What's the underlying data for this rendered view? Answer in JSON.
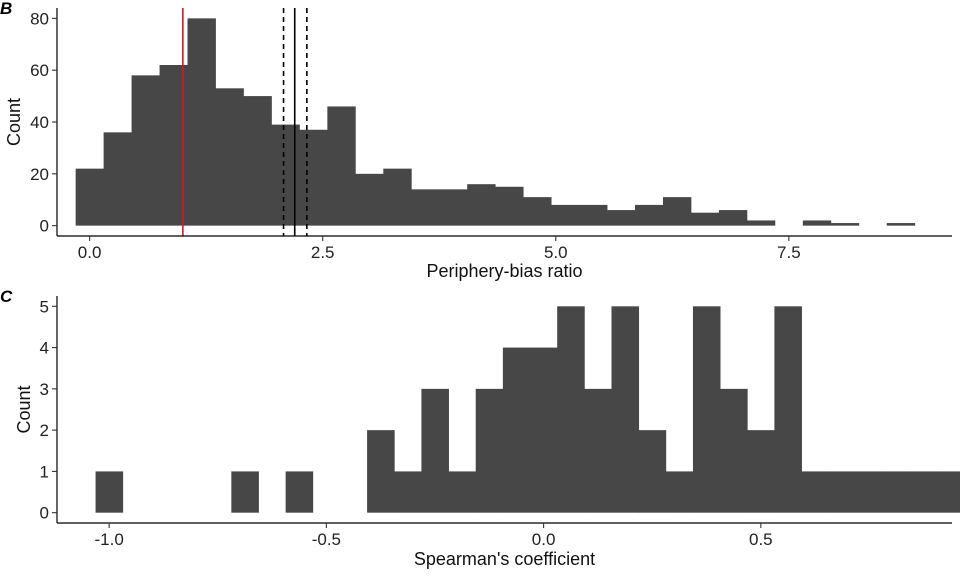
{
  "chart_data": [
    {
      "type": "bar",
      "panel_label": "B",
      "xlabel": "Periphery-bias ratio",
      "ylabel": "Count",
      "xlim": [
        -0.35,
        9.25
      ],
      "ylim": [
        -4,
        84
      ],
      "xticks": [
        0.0,
        2.5,
        5.0,
        7.5
      ],
      "xtick_labels": [
        "0.0",
        "2.5",
        "5.0",
        "7.5"
      ],
      "yticks": [
        0,
        20,
        40,
        60,
        80
      ],
      "ytick_labels": [
        "0",
        "20",
        "40",
        "60",
        "80"
      ],
      "bin_width": 0.3,
      "bin_start": -0.15,
      "values": [
        22,
        36,
        58,
        62,
        80,
        53,
        50,
        39,
        37,
        46,
        20,
        22,
        14,
        14,
        16,
        15,
        11,
        8,
        8,
        6,
        8,
        11,
        5,
        6,
        2,
        0,
        2,
        1,
        0,
        1
      ],
      "bar_color": "#474747",
      "reference_lines": [
        {
          "x": 1.0,
          "color": "#d7191c",
          "style": "solid"
        },
        {
          "x": 2.2,
          "color": "#000000",
          "style": "solid"
        },
        {
          "x": 2.08,
          "color": "#000000",
          "style": "dashed"
        },
        {
          "x": 2.33,
          "color": "#000000",
          "style": "dashed"
        }
      ],
      "grid": false
    },
    {
      "type": "bar",
      "panel_label": "C",
      "xlabel": "Spearman's coefficient",
      "ylabel": "Count",
      "xlim": [
        -1.12,
        0.94
      ],
      "ylim": [
        -0.25,
        5.25
      ],
      "xticks": [
        -1.0,
        -0.5,
        0.0,
        0.5
      ],
      "xtick_labels": [
        "-1.0",
        "-0.5",
        "0.0",
        "0.5"
      ],
      "yticks": [
        0,
        1,
        2,
        3,
        4,
        5
      ],
      "ytick_labels": [
        "0",
        "1",
        "2",
        "3",
        "4",
        "5"
      ],
      "bin_width": 0.0625,
      "bin_start": -1.03125,
      "values": [
        1,
        0,
        0,
        1,
        1,
        0,
        2,
        1,
        3,
        1,
        3,
        4,
        4,
        5,
        3,
        5,
        2,
        1,
        5,
        3,
        2,
        5,
        1,
        1,
        1,
        1,
        1,
        1
      ],
      "bin_starts": [
        -1.03125,
        -0.90625,
        -0.84375,
        -0.71875,
        -0.59375,
        -0.53125,
        -0.40625,
        -0.34375,
        -0.28125,
        -0.21875,
        -0.15625,
        -0.09375,
        -0.03125,
        0.03125,
        0.09375,
        0.15625,
        0.21875,
        0.28125,
        0.34375,
        0.40625,
        0.46875,
        0.53125,
        0.59375,
        0.65625,
        0.71875,
        0.78125,
        0.84375,
        0.90625
      ],
      "bar_color": "#474747",
      "grid": false
    }
  ]
}
